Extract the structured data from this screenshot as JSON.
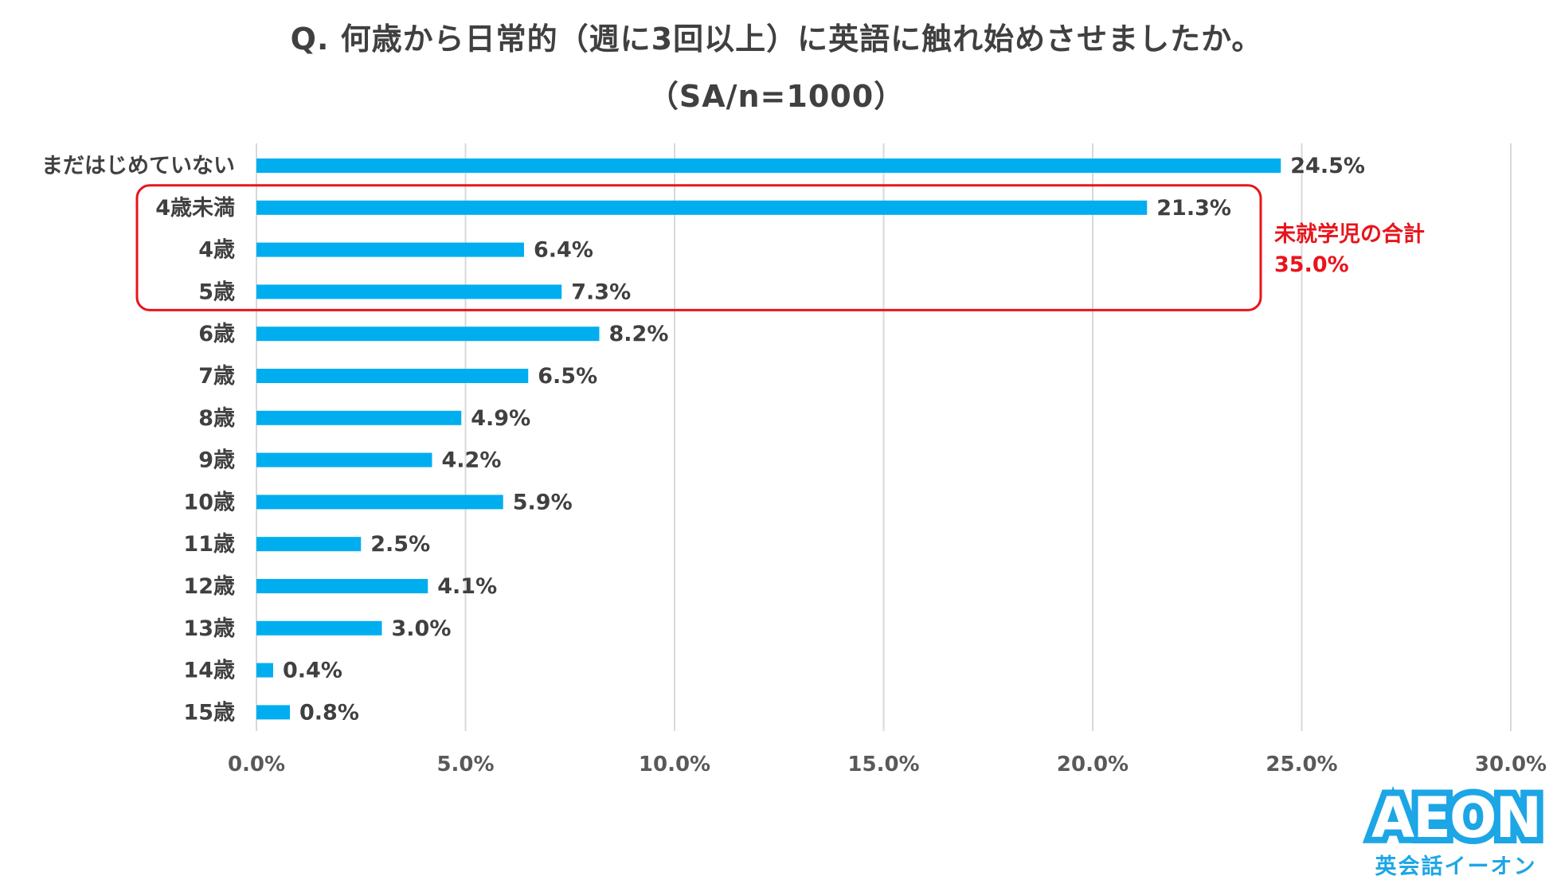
{
  "title_line1": "Q. 何歳から日常的（週に3回以上）に英語に触れ始めさせましたか。",
  "title_line2": "（SA/n=1000）",
  "logo": {
    "main": "AEON",
    "sub": "英会話イーオン"
  },
  "colors": {
    "bar": "#00aeef",
    "annotation": "#e8141c",
    "grid": "#d9d9d9",
    "text": "#404040",
    "logo": "#1ca6e6"
  },
  "chart_data": {
    "type": "bar",
    "orientation": "horizontal",
    "categories": [
      "まだはじめていない",
      "4歳未満",
      "4歳",
      "5歳",
      "6歳",
      "7歳",
      "8歳",
      "9歳",
      "10歳",
      "11歳",
      "12歳",
      "13歳",
      "14歳",
      "15歳"
    ],
    "values": [
      24.5,
      21.3,
      6.4,
      7.3,
      8.2,
      6.5,
      4.9,
      4.2,
      5.9,
      2.5,
      4.1,
      3.0,
      0.4,
      0.8
    ],
    "value_labels": [
      "24.5%",
      "21.3%",
      "6.4%",
      "7.3%",
      "8.2%",
      "6.5%",
      "4.9%",
      "4.2%",
      "5.9%",
      "2.5%",
      "4.1%",
      "3.0%",
      "0.4%",
      "0.8%"
    ],
    "xlim": [
      0,
      30
    ],
    "x_ticks": [
      "0.0%",
      "5.0%",
      "10.0%",
      "15.0%",
      "20.0%",
      "25.0%",
      "30.0%"
    ],
    "grid": true,
    "legend": "none",
    "annotation": {
      "text_line1": "未就学児の合計",
      "text_line2": "35.0%",
      "group_categories": [
        "4歳未満",
        "4歳",
        "5歳"
      ]
    }
  }
}
